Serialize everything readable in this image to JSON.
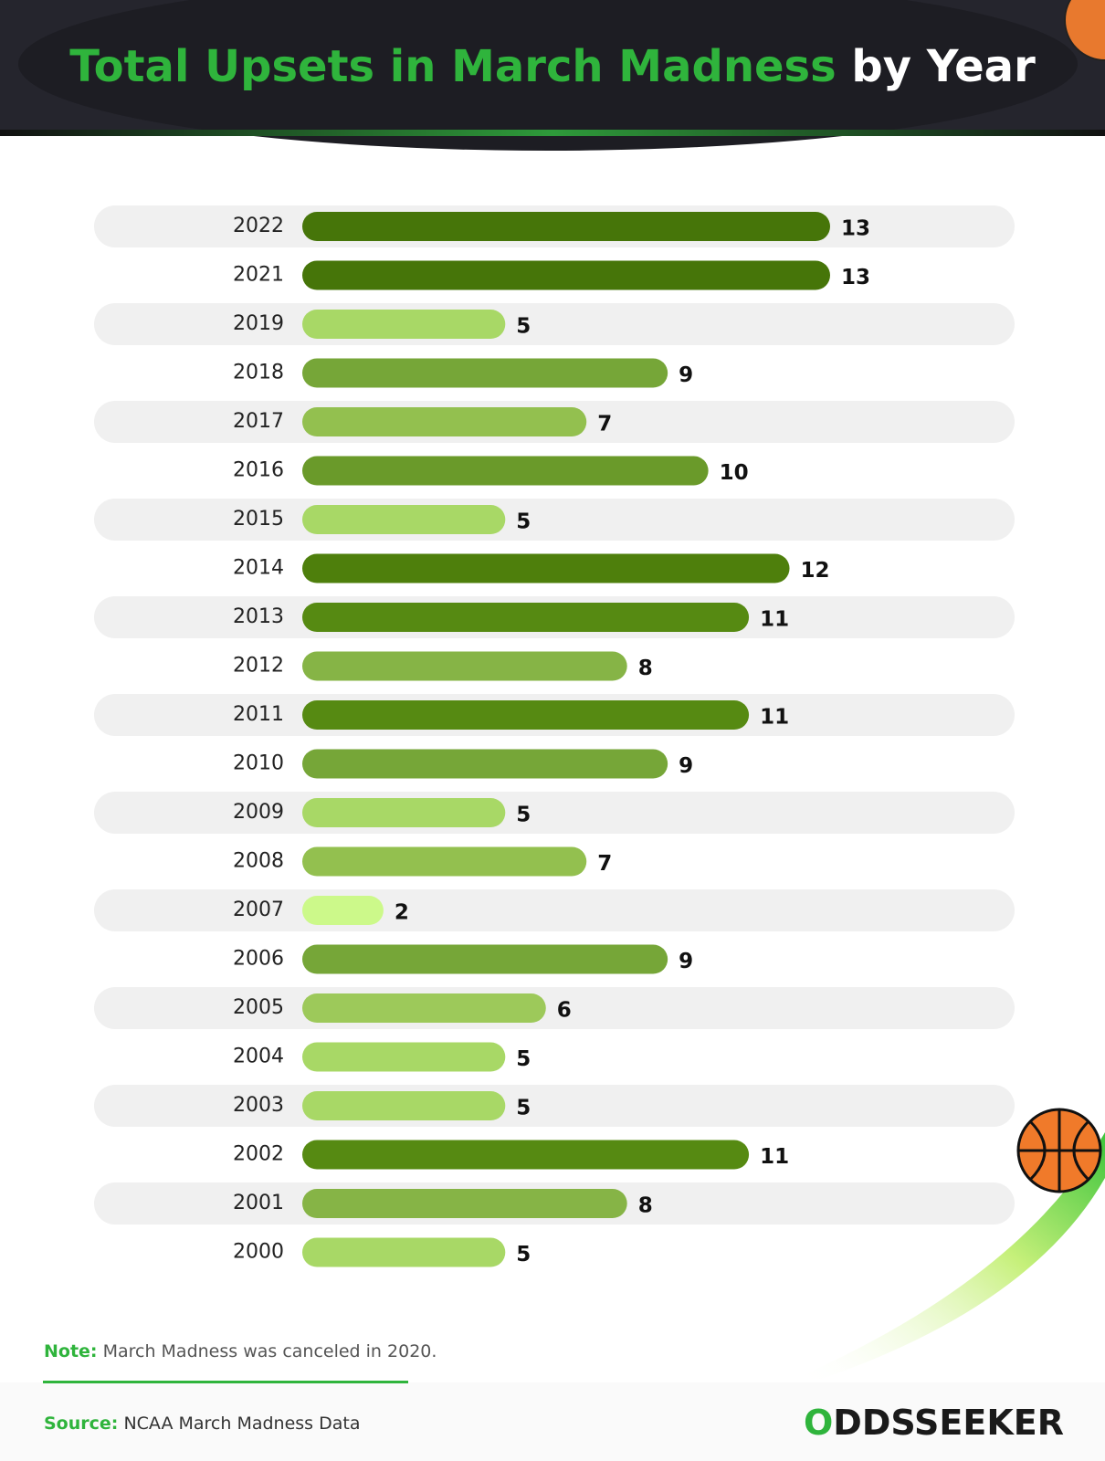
{
  "chart_data": {
    "type": "bar",
    "orientation": "horizontal",
    "title": [
      "Total Upsets in March Madness",
      "by Year"
    ],
    "categories": [
      "2022",
      "2021",
      "2019",
      "2018",
      "2017",
      "2016",
      "2015",
      "2014",
      "2013",
      "2012",
      "2011",
      "2010",
      "2009",
      "2008",
      "2007",
      "2006",
      "2005",
      "2004",
      "2003",
      "2002",
      "2001",
      "2000"
    ],
    "values": [
      13,
      13,
      5,
      9,
      7,
      10,
      5,
      12,
      11,
      8,
      11,
      9,
      5,
      7,
      2,
      9,
      6,
      5,
      5,
      11,
      8,
      5
    ],
    "colors": [
      "#467509",
      "#467509",
      "#a8d866",
      "#76a638",
      "#93c04f",
      "#6a9a2a",
      "#a8d866",
      "#4e7f0c",
      "#568a12",
      "#86b446",
      "#568a12",
      "#76a638",
      "#a8d866",
      "#93c04f",
      "#ccf98a",
      "#76a638",
      "#9dc95a",
      "#a8d866",
      "#a8d866",
      "#568a12",
      "#86b446",
      "#a8d866"
    ],
    "xlim": [
      0,
      13
    ],
    "note_label": "Note:",
    "note": "March Madness was canceled in 2020.",
    "source_label": "Source:",
    "source": "NCAA March Madness Data",
    "logo": "ODDSSEEKER"
  }
}
